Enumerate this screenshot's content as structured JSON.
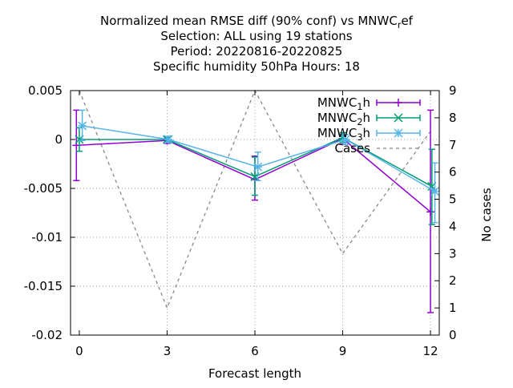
{
  "chart_data": {
    "type": "line",
    "title_lines": [
      {
        "pre": "Normalized mean RMSE diff (90% conf) vs MNWC",
        "sub": "r",
        "post": "ef"
      },
      {
        "pre": "Selection: ALL using    19 stations",
        "sub": "",
        "post": ""
      },
      {
        "pre": "Period: 20220816-20220825",
        "sub": "",
        "post": ""
      },
      {
        "pre": "Specific humidity 50hPa   Hours:  18",
        "sub": "",
        "post": ""
      }
    ],
    "xlabel": "Forecast length",
    "y2label": "No cases",
    "xlim": [
      -0.3,
      12.3
    ],
    "ylim": [
      -0.02,
      0.005
    ],
    "y2lim": [
      0,
      9
    ],
    "x_ticks": [
      0,
      3,
      6,
      9,
      12
    ],
    "x_tick_labels": [
      "0",
      "3",
      "6",
      "9",
      "12"
    ],
    "y_ticks": [
      -0.02,
      -0.015,
      -0.01,
      -0.005,
      0,
      0.005
    ],
    "y_tick_labels": [
      "-0.02",
      "-0.015",
      "-0.01",
      "-0.005",
      "0",
      "0.005"
    ],
    "y2_ticks": [
      0,
      1,
      2,
      3,
      4,
      5,
      6,
      7,
      8,
      9
    ],
    "y2_tick_labels": [
      "0",
      "1",
      "2",
      "3",
      "4",
      "5",
      "6",
      "7",
      "8",
      "9"
    ],
    "grid": true,
    "legend_position": "top-right",
    "series": [
      {
        "name_pre": "MNWC",
        "name_sub": "1",
        "name_post": "h",
        "color": "#9400d3",
        "marker": "plus",
        "x": [
          -0.1,
          3,
          6,
          9,
          12
        ],
        "y": [
          -0.0006,
          -0.0001,
          -0.0041,
          0.0001,
          -0.0074
        ],
        "err_low": [
          -0.0042,
          -0.0004,
          -0.0062,
          -0.0005,
          -0.0177
        ],
        "err_high": [
          0.003,
          0.0002,
          -0.0017,
          0.0005,
          0.003
        ]
      },
      {
        "name_pre": "MNWC",
        "name_sub": "2",
        "name_post": "h",
        "color": "#009e73",
        "marker": "cross",
        "x": [
          0,
          3,
          6,
          9,
          12.05
        ],
        "y": [
          0.0,
          0.0,
          -0.0038,
          0.0002,
          -0.0048
        ],
        "err_low": [
          -0.0012,
          -0.0003,
          -0.0057,
          -0.0003,
          -0.0087
        ],
        "err_high": [
          0.0012,
          0.0003,
          -0.0018,
          0.0007,
          -0.001
        ]
      },
      {
        "name_pre": "MNWC",
        "name_sub": "3",
        "name_post": "h",
        "color": "#56b4e9",
        "marker": "star",
        "x": [
          0.1,
          3.05,
          6.1,
          9.1,
          12.15
        ],
        "y": [
          0.0014,
          0.0,
          -0.0028,
          0.0,
          -0.0053
        ],
        "err_low": [
          -0.0001,
          -0.0003,
          -0.0042,
          -0.0005,
          -0.0085
        ],
        "err_high": [
          0.003,
          0.0003,
          -0.0013,
          0.0005,
          -0.0024
        ]
      }
    ],
    "cases": {
      "name": "Cases",
      "color": "#888888",
      "x": [
        0,
        3,
        6,
        9,
        12
      ],
      "y": [
        9,
        1,
        9,
        3,
        7.5
      ]
    }
  }
}
